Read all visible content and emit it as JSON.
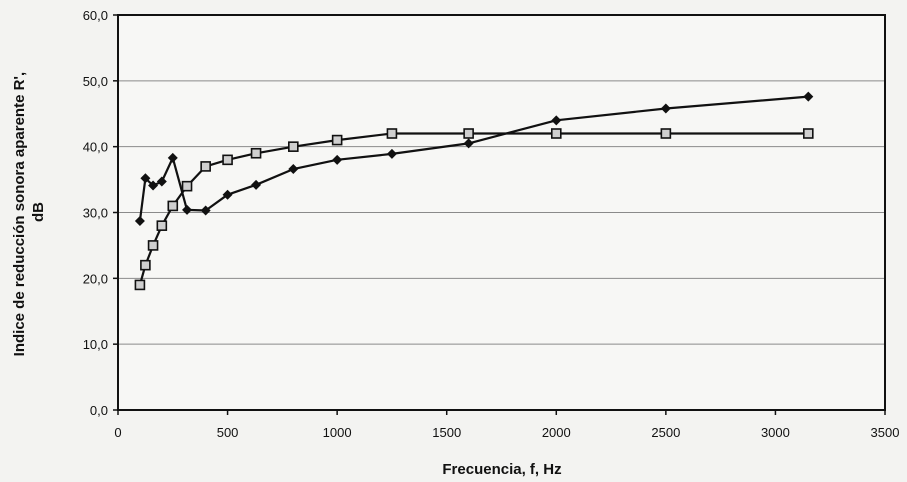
{
  "chart_data": {
    "type": "line",
    "title": "",
    "xlabel": "Frecuencia, f, Hz",
    "ylabel_lines": [
      "Indice de reducción sonora aparente R',",
      "dB"
    ],
    "xlim": [
      0,
      3500
    ],
    "ylim": [
      0,
      60
    ],
    "x_ticks": [
      0,
      500,
      1000,
      1500,
      2000,
      2500,
      3000,
      3500
    ],
    "x_tick_labels": [
      "0",
      "500",
      "1000",
      "1500",
      "2000",
      "2500",
      "3000",
      "3500"
    ],
    "y_ticks": [
      0,
      10,
      20,
      30,
      40,
      50,
      60
    ],
    "y_tick_labels": [
      "0,0",
      "10,0",
      "20,0",
      "30,0",
      "40,0",
      "50,0",
      "60,0"
    ],
    "grid": "horizontal",
    "legend": "none",
    "series": [
      {
        "marker": "diamond",
        "color": "#111111",
        "x": [
          100,
          125,
          160,
          200,
          250,
          315,
          400,
          500,
          630,
          800,
          1000,
          1250,
          1600,
          2000,
          2500,
          3150
        ],
        "y": [
          28.7,
          35.2,
          34.1,
          34.7,
          38.3,
          30.4,
          30.3,
          32.7,
          34.2,
          36.6,
          38.0,
          38.9,
          40.5,
          44.0,
          45.8,
          47.6
        ]
      },
      {
        "marker": "square",
        "color": "#111111",
        "x": [
          100,
          125,
          160,
          200,
          250,
          315,
          400,
          500,
          630,
          800,
          1000,
          1250,
          1600,
          2000,
          2500,
          3150
        ],
        "y": [
          19.0,
          22.0,
          25.0,
          28.0,
          31.0,
          34.0,
          37.0,
          38.0,
          39.0,
          40.0,
          41.0,
          42.0,
          42.0,
          42.0,
          42.0,
          42.0
        ]
      }
    ]
  }
}
